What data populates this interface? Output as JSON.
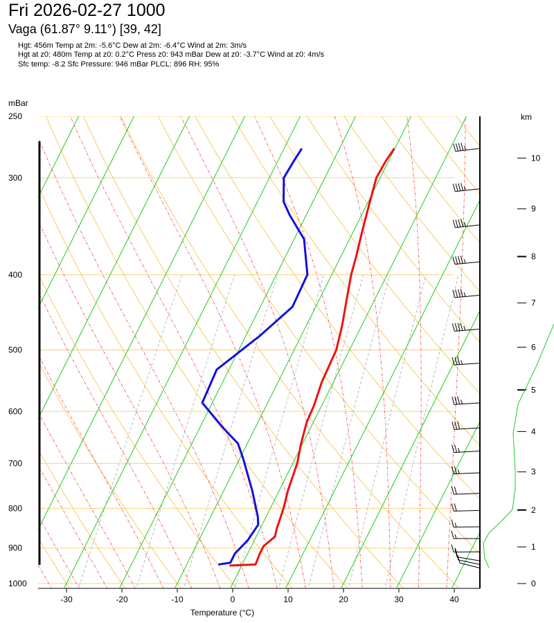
{
  "header": {
    "title": "Fri  2026-02-27   1000",
    "subtitle": "Vaga (61.87° 9.11°) [39, 42]",
    "info_lines": [
      "Hgt: 456m   Temp at 2m: -5.6°C   Dew at 2m: -6.4°C   Wind at 2m: 3m/s",
      "Hgt at z0: 480m  Temp at z0: 0.2°C  Press z0: 943 mBar  Dew at z0: -3.7°C  Wind at z0: 4m/s",
      "Sfc temp: -8.2   Sfc Pressure: 946 mBar  PLCL: 896   RH: 95%"
    ]
  },
  "chart_data": {
    "type": "line",
    "subtype": "skew-T log-P sounding",
    "xlabel": "Temperature (°C)",
    "ylabel": "mBar",
    "y2label": "km",
    "xlim": [
      -35,
      45
    ],
    "ylim": [
      1000,
      250
    ],
    "y_scale": "log",
    "x_ticks": [
      -30,
      -20,
      -10,
      0,
      10,
      20,
      30,
      40
    ],
    "pressure_ticks": [
      250,
      300,
      400,
      500,
      600,
      700,
      800,
      900,
      1000
    ],
    "height_ticks_km": [
      0,
      1,
      2,
      3,
      4,
      5,
      6,
      7,
      8,
      9,
      10
    ],
    "height_tick_pressures": [
      1000,
      897,
      804,
      718,
      637,
      563,
      496,
      435,
      379,
      329,
      283
    ],
    "colors": {
      "temperature": "#ee1111",
      "dewpoint": "#1111dd",
      "dry_adiabat": "#f5c040",
      "moist_adiabat": "#ee4444",
      "mixing_ratio": "#aaaaaa",
      "isotherm": "#22cc22",
      "isobar": "#ffd070",
      "humidity_profile": "#22cc22",
      "wind_barb": "#000000"
    },
    "series": [
      {
        "name": "Temperature",
        "points": [
          [
            -10.1,
            275
          ],
          [
            -10.5,
            285
          ],
          [
            -10.7,
            300
          ],
          [
            -9.8,
            320
          ],
          [
            -8.5,
            350
          ],
          [
            -7.2,
            380
          ],
          [
            -6.5,
            400
          ],
          [
            -5.1,
            430
          ],
          [
            -3.5,
            466
          ],
          [
            -2.4,
            500
          ],
          [
            -2.1,
            550
          ],
          [
            -1.4,
            590
          ],
          [
            -1.2,
            620
          ],
          [
            -0.3,
            660
          ],
          [
            0.8,
            700
          ],
          [
            1.6,
            760
          ],
          [
            2.4,
            800
          ],
          [
            3.0,
            850
          ],
          [
            3.4,
            870
          ],
          [
            2.2,
            895
          ],
          [
            2.2,
            915
          ],
          [
            2.4,
            945
          ],
          [
            -2.2,
            948
          ]
        ]
      },
      {
        "name": "Dewpoint",
        "points": [
          [
            -26.8,
            275
          ],
          [
            -27.1,
            285
          ],
          [
            -27.4,
            300
          ],
          [
            -25.3,
            322
          ],
          [
            -23.0,
            335
          ],
          [
            -18.2,
            360
          ],
          [
            -14.4,
            400
          ],
          [
            -14.2,
            440
          ],
          [
            -17.5,
            480
          ],
          [
            -22.2,
            530
          ],
          [
            -21.8,
            585
          ],
          [
            -15.8,
            630
          ],
          [
            -11.7,
            660
          ],
          [
            -9.4,
            690
          ],
          [
            -4.8,
            760
          ],
          [
            -1.5,
            820
          ],
          [
            -0.7,
            840
          ],
          [
            -1.2,
            880
          ],
          [
            -2.3,
            915
          ],
          [
            -2.3,
            940
          ],
          [
            -4.3,
            945
          ]
        ]
      },
      {
        "name": "Relative humidity profile",
        "points": [
          [
            800,
            468
          ],
          [
            774,
            530
          ],
          [
            748,
            584
          ],
          [
            741,
            626
          ],
          [
            744,
            680
          ],
          [
            744,
            706
          ],
          [
            740,
            736
          ],
          [
            724,
            753
          ],
          [
            706,
            770
          ],
          [
            698,
            785
          ],
          [
            700,
            807
          ],
          [
            706,
            820
          ]
        ]
      }
    ],
    "wind_barbs": [
      {
        "pressure": 275,
        "dir_deg": 248,
        "speed_kt": 45
      },
      {
        "pressure": 310,
        "dir_deg": 250,
        "speed_kt": 45
      },
      {
        "pressure": 345,
        "dir_deg": 250,
        "speed_kt": 45
      },
      {
        "pressure": 385,
        "dir_deg": 252,
        "speed_kt": 45
      },
      {
        "pressure": 425,
        "dir_deg": 252,
        "speed_kt": 45
      },
      {
        "pressure": 470,
        "dir_deg": 255,
        "speed_kt": 45
      },
      {
        "pressure": 520,
        "dir_deg": 257,
        "speed_kt": 35
      },
      {
        "pressure": 585,
        "dir_deg": 258,
        "speed_kt": 35
      },
      {
        "pressure": 630,
        "dir_deg": 258,
        "speed_kt": 30
      },
      {
        "pressure": 675,
        "dir_deg": 260,
        "speed_kt": 25
      },
      {
        "pressure": 720,
        "dir_deg": 262,
        "speed_kt": 25
      },
      {
        "pressure": 765,
        "dir_deg": 262,
        "speed_kt": 20
      },
      {
        "pressure": 805,
        "dir_deg": 265,
        "speed_kt": 20
      },
      {
        "pressure": 845,
        "dir_deg": 268,
        "speed_kt": 15
      },
      {
        "pressure": 875,
        "dir_deg": 270,
        "speed_kt": 15
      },
      {
        "pressure": 910,
        "dir_deg": 272,
        "speed_kt": 15
      },
      {
        "pressure": 935,
        "dir_deg": 300,
        "speed_kt": 10
      },
      {
        "pressure": 945,
        "dir_deg": 305,
        "speed_kt": 10
      },
      {
        "pressure": 955,
        "dir_deg": 310,
        "speed_kt": 10
      }
    ]
  }
}
